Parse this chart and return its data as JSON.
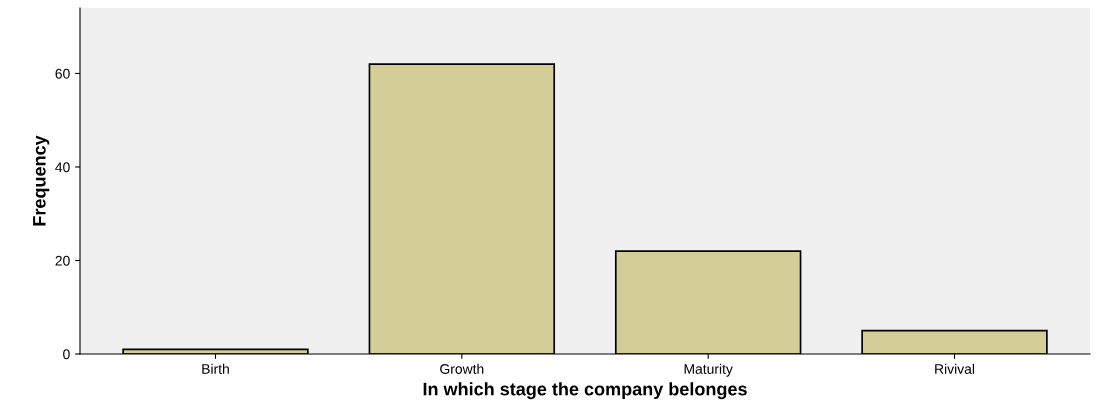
{
  "chart_data": {
    "type": "bar",
    "xlabel": "In which stage the company belonges",
    "ylabel": "Frequency",
    "categories": [
      "Birth",
      "Growth",
      "Maturity",
      "Rivival"
    ],
    "values": [
      1,
      62,
      22,
      5
    ],
    "color": "#d3cd98",
    "ylim": [
      0,
      74
    ],
    "yticks": [
      0,
      20,
      40,
      60
    ],
    "grid": false,
    "legend": false
  }
}
